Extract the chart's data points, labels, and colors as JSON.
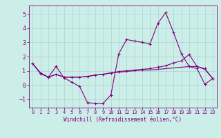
{
  "xlabel": "Windchill (Refroidissement éolien,°C)",
  "bg_color": "#cceee8",
  "line_color": "#800080",
  "grid_color": "#aad4cc",
  "xlim": [
    -0.5,
    23.5
  ],
  "ylim": [
    -1.6,
    5.6
  ],
  "xticks": [
    0,
    1,
    2,
    3,
    4,
    5,
    6,
    7,
    8,
    9,
    10,
    11,
    12,
    13,
    14,
    15,
    16,
    17,
    18,
    19,
    20,
    21,
    22,
    23
  ],
  "yticks": [
    -1,
    0,
    1,
    2,
    3,
    4,
    5
  ],
  "series1_x": [
    0,
    1,
    2,
    3,
    4,
    5,
    6,
    7,
    8,
    9,
    10,
    11,
    12,
    13,
    14,
    15,
    16,
    17,
    18,
    19,
    20,
    21,
    22,
    23
  ],
  "series1_y": [
    1.5,
    0.8,
    0.55,
    1.3,
    0.5,
    0.2,
    -0.1,
    -1.25,
    -1.3,
    -1.3,
    -0.7,
    2.2,
    3.2,
    3.1,
    3.0,
    2.9,
    4.35,
    5.1,
    3.7,
    2.2,
    1.3,
    1.15,
    0.05,
    0.45
  ],
  "series2_x": [
    0,
    1,
    2,
    3,
    4,
    5,
    6,
    7,
    8,
    9,
    10,
    11,
    12,
    13,
    14,
    15,
    16,
    17,
    18,
    19,
    20,
    21,
    22,
    23
  ],
  "series2_y": [
    1.5,
    0.85,
    0.55,
    0.75,
    0.55,
    0.55,
    0.55,
    0.6,
    0.7,
    0.75,
    0.85,
    0.95,
    1.0,
    1.05,
    1.1,
    1.15,
    1.25,
    1.35,
    1.55,
    1.7,
    2.15,
    1.3,
    1.15,
    0.45
  ],
  "series3_x": [
    0,
    1,
    2,
    3,
    4,
    5,
    6,
    7,
    8,
    9,
    10,
    11,
    12,
    13,
    14,
    15,
    16,
    17,
    18,
    19,
    20,
    21,
    22,
    23
  ],
  "series3_y": [
    1.5,
    0.85,
    0.55,
    0.75,
    0.55,
    0.55,
    0.55,
    0.6,
    0.7,
    0.75,
    0.85,
    0.9,
    0.95,
    1.0,
    1.05,
    1.05,
    1.1,
    1.15,
    1.2,
    1.25,
    1.3,
    1.3,
    1.1,
    0.45
  ]
}
